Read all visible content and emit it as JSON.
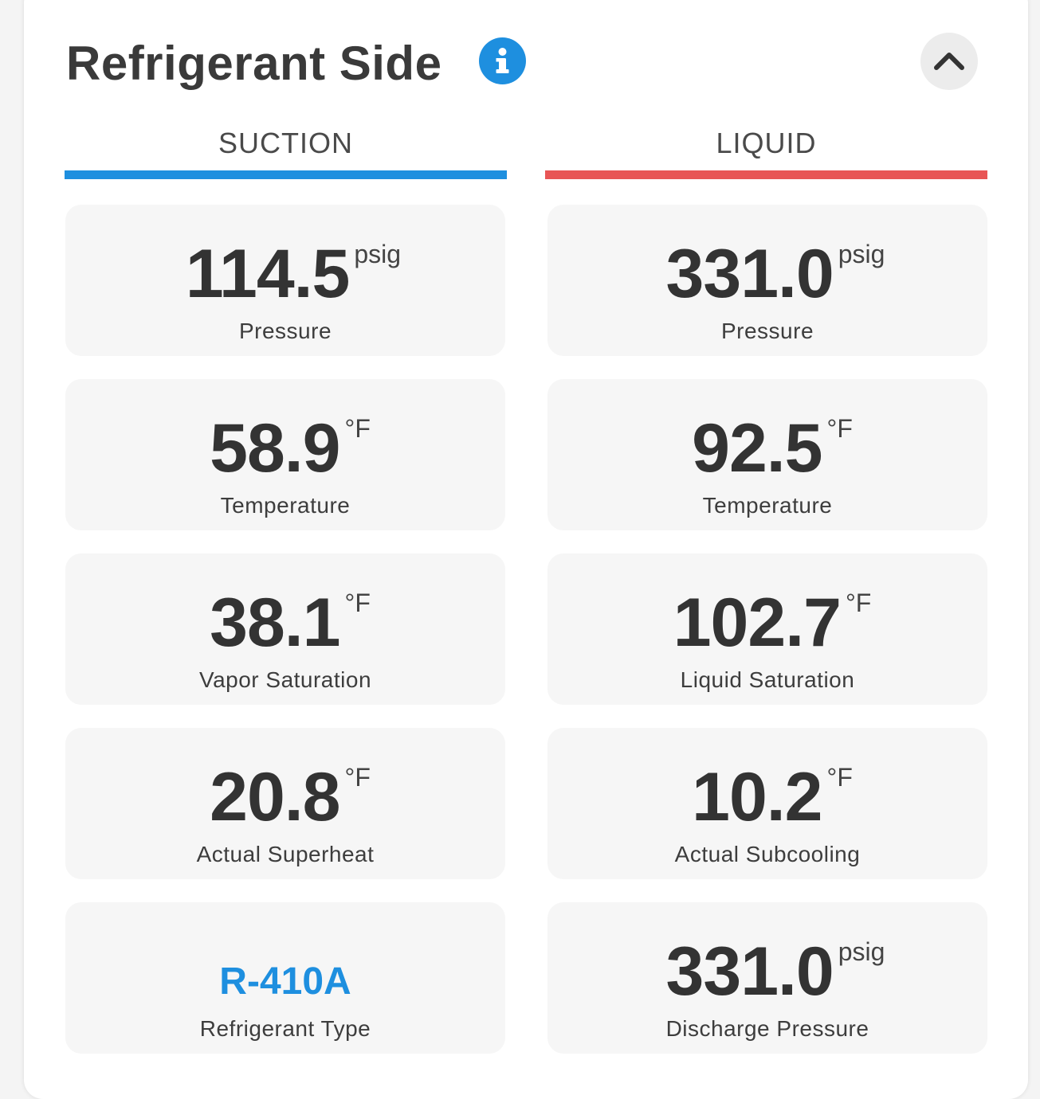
{
  "section": {
    "title": "Refrigerant Side",
    "info_icon": "info-icon",
    "collapse_icon": "chevron-up-icon"
  },
  "columns": {
    "suction": {
      "label": "SUCTION",
      "color": "#1e8fdf"
    },
    "liquid": {
      "label": "LIQUID",
      "color": "#e85555"
    }
  },
  "suction_cards": [
    {
      "value": "114.5",
      "unit": "psig",
      "label": "Pressure"
    },
    {
      "value": "58.9",
      "unit": "°F",
      "label": "Temperature"
    },
    {
      "value": "38.1",
      "unit": "°F",
      "label": "Vapor Saturation"
    },
    {
      "value": "20.8",
      "unit": "°F",
      "label": "Actual Superheat"
    },
    {
      "value": "R-410A",
      "label": "Refrigerant Type"
    }
  ],
  "liquid_cards": [
    {
      "value": "331.0",
      "unit": "psig",
      "label": "Pressure"
    },
    {
      "value": "92.5",
      "unit": "°F",
      "label": "Temperature"
    },
    {
      "value": "102.7",
      "unit": "°F",
      "label": "Liquid Saturation"
    },
    {
      "value": "10.2",
      "unit": "°F",
      "label": "Actual Subcooling"
    },
    {
      "value": "331.0",
      "unit": "psig",
      "label": "Discharge Pressure"
    }
  ]
}
